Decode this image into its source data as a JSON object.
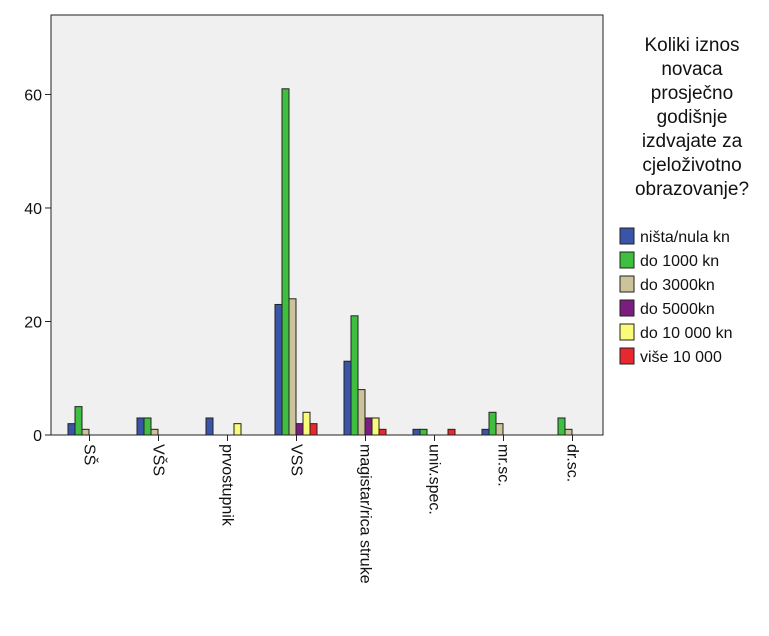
{
  "chart_data": {
    "type": "bar",
    "categories": [
      "SŠ",
      "VŠS",
      "prvostupnik",
      "VSS",
      "magistar/rica struke",
      "univ.spec.",
      "mr.sc.",
      "dr.sc."
    ],
    "series": [
      {
        "name": "ništa/nula kn",
        "color": "#3a55a8",
        "values": [
          2,
          3,
          3,
          23,
          13,
          1,
          1,
          0
        ]
      },
      {
        "name": "do 1000 kn",
        "color": "#3fbf3f",
        "values": [
          5,
          3,
          0,
          61,
          21,
          1,
          4,
          3
        ]
      },
      {
        "name": "do 3000kn",
        "color": "#ccc39a",
        "values": [
          1,
          1,
          0,
          24,
          8,
          0,
          2,
          1
        ]
      },
      {
        "name": "do 5000kn",
        "color": "#7b1d7e",
        "values": [
          0,
          0,
          0,
          2,
          3,
          0,
          0,
          0
        ]
      },
      {
        "name": "do 10 000 kn",
        "color": "#fbfb7a",
        "values": [
          0,
          0,
          2,
          4,
          3,
          0,
          0,
          0
        ]
      },
      {
        "name": "više 10 000",
        "color": "#e8282e",
        "values": [
          0,
          0,
          0,
          2,
          1,
          1,
          0,
          0
        ]
      }
    ],
    "yticks": [
      0,
      20,
      40,
      60
    ],
    "ylim": [
      0,
      74
    ],
    "legend_title_lines": [
      "Koliki iznos",
      "novaca",
      "prosječno",
      "godišnje",
      "izdvajate za",
      "cjeloživotno",
      "obrazovanje?"
    ],
    "legend_position": "right",
    "plot_background": "#f0f0f0",
    "grid": false
  }
}
